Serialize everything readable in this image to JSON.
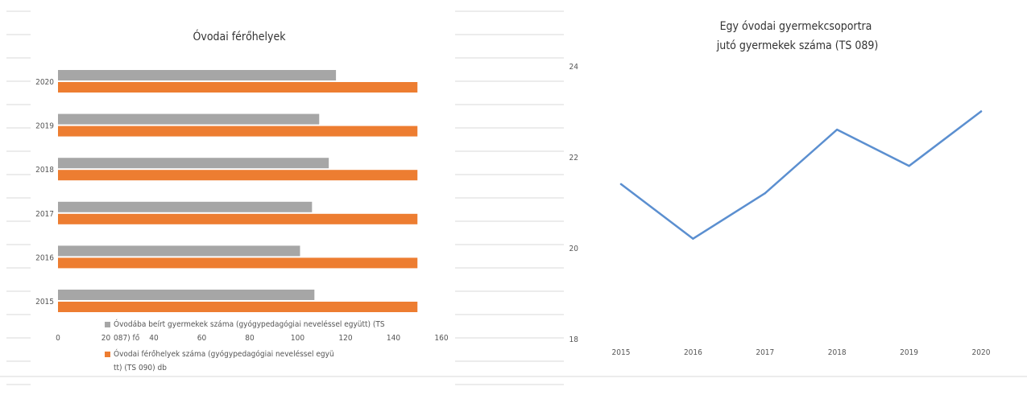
{
  "chart_data": [
    {
      "type": "bar",
      "orientation": "horizontal",
      "title": "Óvodai férőhelyek",
      "categories": [
        "2015",
        "2016",
        "2017",
        "2018",
        "2019",
        "2020"
      ],
      "series": [
        {
          "name": "Óvodába beírt gyermekek száma (gyógypedagógiai neveléssel együtt) (TS 087) fő",
          "color": "#a6a6a6",
          "values": [
            107,
            101,
            106,
            113,
            109,
            116
          ]
        },
        {
          "name": "Óvodai férőhelyek száma (gyógypedagógiai neveléssel együtt) (TS 090) db",
          "color": "#ed7d31",
          "values": [
            150,
            150,
            150,
            150,
            150,
            150
          ]
        }
      ],
      "xlim": [
        0,
        160
      ],
      "xticks": [
        "0",
        "20",
        "40",
        "60",
        "80",
        "100",
        "120",
        "140",
        "160"
      ],
      "legend": "bottom",
      "grid": false
    },
    {
      "type": "line",
      "title": "Egy óvodai gyermekcsoportra jutó gyermekek száma (TS 089)",
      "x": [
        "2015",
        "2016",
        "2017",
        "2018",
        "2019",
        "2020"
      ],
      "series": [
        {
          "color": "#5b8fd0",
          "values": [
            21.4,
            20.2,
            21.2,
            22.6,
            21.8,
            23.0
          ]
        }
      ],
      "ylim": [
        18,
        24
      ],
      "yticks": [
        "18",
        "20",
        "22",
        "24"
      ],
      "grid": false
    }
  ]
}
